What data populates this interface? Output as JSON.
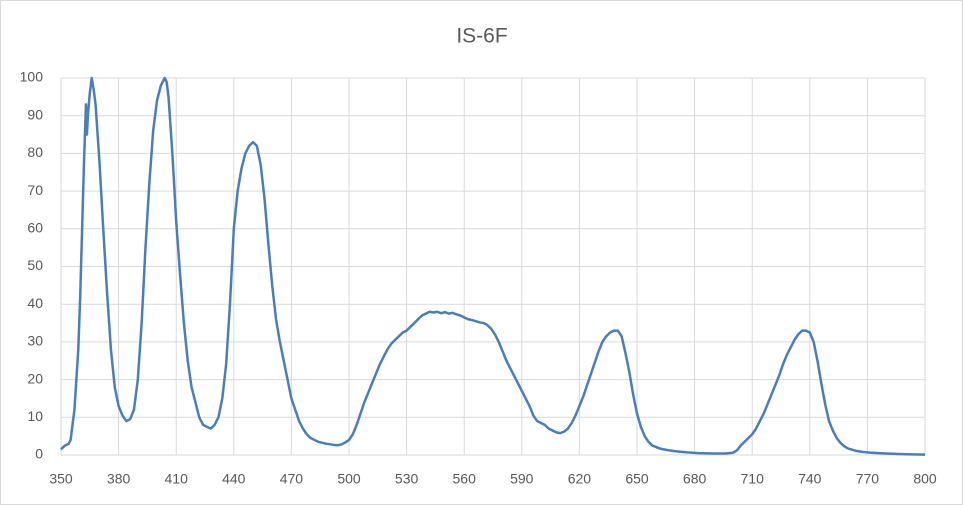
{
  "chart_data": {
    "type": "line",
    "title": "IS-6F",
    "x": [
      350,
      352,
      354,
      355,
      356,
      357,
      358,
      359,
      360,
      361,
      362,
      363,
      363.5,
      364,
      365,
      366,
      367,
      368,
      370,
      372,
      374,
      376,
      378,
      380,
      382,
      384,
      386,
      388,
      390,
      392,
      394,
      396,
      398,
      400,
      402,
      404,
      405,
      406,
      408,
      410,
      412,
      414,
      416,
      418,
      420,
      422,
      424,
      426,
      428,
      430,
      432,
      434,
      436,
      438,
      440,
      442,
      444,
      446,
      448,
      450,
      452,
      454,
      456,
      458,
      460,
      462,
      464,
      466,
      468,
      470,
      472,
      474,
      476,
      478,
      480,
      484,
      488,
      492,
      494,
      496,
      498,
      500,
      502,
      504,
      506,
      508,
      510,
      512,
      514,
      516,
      518,
      520,
      522,
      524,
      526,
      528,
      530,
      532,
      534,
      536,
      538,
      540,
      542,
      544,
      546,
      548,
      550,
      552,
      554,
      556,
      558,
      560,
      562,
      564,
      566,
      568,
      570,
      572,
      574,
      576,
      578,
      580,
      582,
      584,
      586,
      588,
      590,
      592,
      594,
      596,
      598,
      600,
      602,
      604,
      606,
      608,
      610,
      612,
      614,
      616,
      618,
      620,
      622,
      624,
      626,
      628,
      630,
      632,
      634,
      636,
      638,
      640,
      642,
      644,
      646,
      648,
      650,
      652,
      654,
      656,
      658,
      662,
      666,
      670,
      676,
      682,
      690,
      696,
      700,
      702,
      704,
      706,
      708,
      710,
      712,
      714,
      716,
      718,
      720,
      722,
      724,
      726,
      728,
      730,
      732,
      734,
      736,
      738,
      740,
      742,
      744,
      746,
      748,
      750,
      752,
      754,
      756,
      758,
      760,
      764,
      768,
      772,
      780,
      790,
      800
    ],
    "values": [
      1.5,
      2.5,
      3,
      4,
      8,
      12,
      20,
      28,
      42,
      60,
      78,
      93,
      85,
      90,
      96,
      100,
      97,
      93,
      78,
      60,
      43,
      28,
      18,
      13,
      10.5,
      9,
      9.5,
      12,
      20,
      35,
      55,
      72,
      86,
      94,
      98,
      100,
      99,
      95,
      80,
      62,
      48,
      35,
      25,
      18,
      14,
      10,
      8,
      7.5,
      7,
      8,
      10,
      15,
      24,
      40,
      60,
      70,
      76,
      80,
      82,
      83,
      82,
      77,
      68,
      56,
      45,
      36,
      30,
      25,
      20,
      15,
      12,
      9,
      7,
      5.5,
      4.5,
      3.5,
      3,
      2.7,
      2.6,
      2.8,
      3.3,
      4,
      5.5,
      8,
      11,
      14,
      16.5,
      19,
      21.5,
      24,
      26,
      28,
      29.5,
      30.5,
      31.5,
      32.5,
      33,
      34,
      35,
      36,
      37,
      37.5,
      38,
      37.8,
      38,
      37.6,
      37.9,
      37.5,
      37.7,
      37.3,
      37,
      36.5,
      36,
      35.8,
      35.5,
      35.2,
      35,
      34.5,
      33.5,
      32,
      30,
      27.5,
      25,
      23,
      21,
      19,
      17,
      15,
      13,
      10.5,
      9,
      8.5,
      8,
      7,
      6.5,
      6,
      5.8,
      6.2,
      7,
      8.5,
      10.5,
      13,
      15.5,
      18.5,
      21.5,
      24.5,
      27.5,
      30,
      31.5,
      32.5,
      33,
      33,
      31.5,
      27,
      22,
      16,
      11,
      7.5,
      5,
      3.5,
      2.5,
      1.7,
      1.3,
      1,
      0.7,
      0.5,
      0.4,
      0.4,
      0.6,
      1.2,
      2.5,
      3.5,
      4.5,
      5.5,
      7,
      9,
      11,
      13.5,
      16,
      18.5,
      21,
      24,
      26.5,
      28.5,
      30.5,
      32,
      33,
      33,
      32.5,
      30,
      25,
      19,
      13.5,
      9,
      6.5,
      4.5,
      3.2,
      2.3,
      1.7,
      1.1,
      0.8,
      0.6,
      0.4,
      0.2,
      0.1
    ],
    "color": "#4a7ebb",
    "xlim": [
      350,
      800
    ],
    "xticks": [
      350,
      380,
      410,
      440,
      470,
      500,
      530,
      560,
      590,
      620,
      650,
      680,
      710,
      740,
      770,
      800
    ],
    "ylim": [
      0,
      100
    ],
    "yticks": [
      0,
      10,
      20,
      30,
      40,
      50,
      60,
      70,
      80,
      90,
      100
    ],
    "grid": true
  }
}
